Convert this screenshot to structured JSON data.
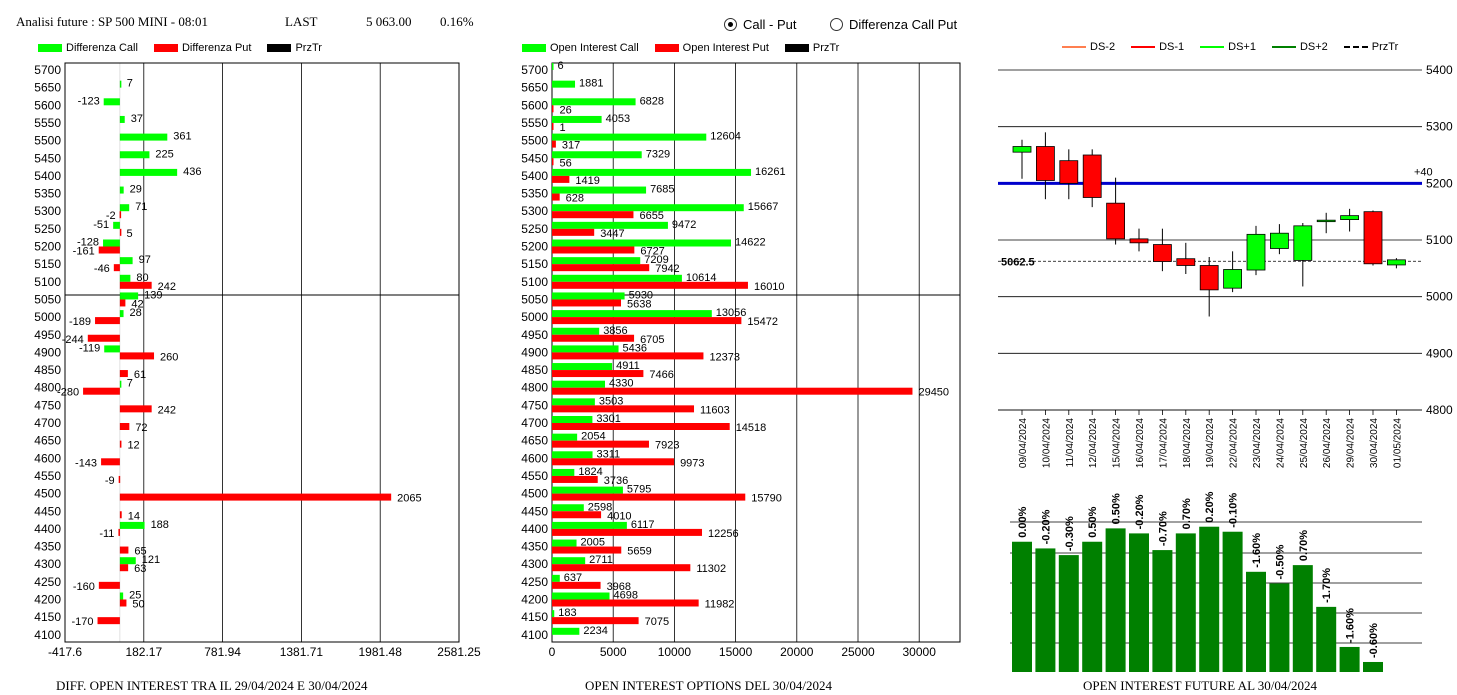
{
  "header": {
    "title": "Analisi future : SP 500 MINI - 08:01",
    "last_label": "LAST",
    "last_value": "5 063.00",
    "last_change": "0.16%"
  },
  "mode": {
    "options": [
      {
        "label": "Call - Put",
        "selected": true
      },
      {
        "label": "Differenza Call Put",
        "selected": false
      }
    ]
  },
  "colors": {
    "call": "#00ff00",
    "put": "#ff0000",
    "przTr": "#000000",
    "ds_minus2": "#ff7f50",
    "ds_minus1": "#ff0000",
    "ds_plus1": "#00ff00",
    "ds_plus2": "#008000",
    "candle_up": "#00ff00",
    "candle_down": "#ff0000",
    "level_line": "#0000cc",
    "oi_bar": "#008000"
  },
  "legends": {
    "diff": [
      {
        "label": "Differenza Call",
        "color": "#00ff00"
      },
      {
        "label": "Differenza Put",
        "color": "#ff0000"
      },
      {
        "label": "PrzTr",
        "color": "#000000"
      }
    ],
    "oi": [
      {
        "label": "Open Interest Call",
        "color": "#00ff00"
      },
      {
        "label": "Open Interest Put",
        "color": "#ff0000"
      },
      {
        "label": "PrzTr",
        "color": "#000000"
      }
    ],
    "future": [
      {
        "label": "DS-2",
        "color": "#ff7f50",
        "style": "solid"
      },
      {
        "label": "DS-1",
        "color": "#ff0000",
        "style": "solid"
      },
      {
        "label": "DS+1",
        "color": "#00ff00",
        "style": "solid"
      },
      {
        "label": "DS+2",
        "color": "#008000",
        "style": "solid"
      },
      {
        "label": "PrzTr",
        "color": "#000000",
        "style": "dashed"
      }
    ]
  },
  "footers": {
    "diff": "DIFF. OPEN INTEREST TRA IL 29/04/2024 E 30/04/2024",
    "oi": "OPEN INTEREST OPTIONS DEL 30/04/2024",
    "future": "OPEN INTEREST FUTURE AL 30/04/2024"
  },
  "chart_data": [
    {
      "type": "bar",
      "orientation": "horizontal",
      "categories": [
        "5700",
        "5650",
        "5600",
        "5550",
        "5500",
        "5450",
        "5400",
        "5350",
        "5300",
        "5250",
        "5200",
        "5150",
        "5100",
        "5050",
        "5000",
        "4950",
        "4900",
        "4850",
        "4800",
        "4750",
        "4700",
        "4650",
        "4600",
        "4550",
        "4500",
        "4450",
        "4400",
        "4350",
        "4300",
        "4250",
        "4200",
        "4150",
        "4100"
      ],
      "series": [
        {
          "name": "Differenza Call",
          "values": [
            null,
            7,
            -123,
            37,
            361,
            225,
            436,
            29,
            71,
            -51,
            -128,
            97,
            80,
            139,
            28,
            null,
            -119,
            null,
            7,
            null,
            null,
            null,
            null,
            null,
            null,
            null,
            188,
            null,
            121,
            null,
            25,
            null,
            null
          ]
        },
        {
          "name": "Differenza Put",
          "values": [
            null,
            null,
            null,
            null,
            null,
            null,
            null,
            null,
            -2,
            5,
            -161,
            -46,
            242,
            42,
            -189,
            -244,
            260,
            61,
            -280,
            242,
            72,
            12,
            -143,
            -9,
            2065,
            14,
            -11,
            65,
            63,
            -160,
            50,
            -170,
            null
          ]
        }
      ],
      "xticks": [
        "-417.6",
        "182.17",
        "781.94",
        "1381.71",
        "1981.48",
        "2581.25"
      ],
      "xlim": [
        -417.6,
        2581.25
      ],
      "przTr": 5062.5,
      "grid": true
    },
    {
      "type": "bar",
      "orientation": "horizontal",
      "categories": [
        "5700",
        "5650",
        "5600",
        "5550",
        "5500",
        "5450",
        "5400",
        "5350",
        "5300",
        "5250",
        "5200",
        "5150",
        "5100",
        "5050",
        "5000",
        "4950",
        "4900",
        "4850",
        "4800",
        "4750",
        "4700",
        "4650",
        "4600",
        "4550",
        "4500",
        "4450",
        "4400",
        "4350",
        "4300",
        "4250",
        "4200",
        "4150",
        "4100"
      ],
      "series": [
        {
          "name": "Open Interest Call",
          "values": [
            6,
            1881,
            6828,
            4053,
            12604,
            7329,
            16261,
            7685,
            15667,
            9472,
            14622,
            7209,
            10614,
            5930,
            13056,
            3856,
            5436,
            4911,
            4330,
            3503,
            3301,
            2054,
            3311,
            1824,
            5795,
            2598,
            6117,
            2005,
            2711,
            637,
            4698,
            183,
            2234
          ]
        },
        {
          "name": "Open Interest Put",
          "values": [
            null,
            null,
            26,
            1,
            317,
            56,
            1419,
            628,
            6655,
            3447,
            6727,
            7942,
            16010,
            5638,
            15472,
            6705,
            12373,
            7466,
            29450,
            11603,
            14518,
            7923,
            9973,
            3736,
            15790,
            4010,
            12256,
            5659,
            11302,
            3968,
            11982,
            7075,
            null
          ]
        }
      ],
      "xticks": [
        "0",
        "5000",
        "10000",
        "15000",
        "20000",
        "25000",
        "30000"
      ],
      "xlim": [
        0,
        30000
      ],
      "przTr": 5062.5,
      "grid": true
    },
    {
      "type": "candlestick",
      "dates": [
        "09/04/2024",
        "10/04/2024",
        "11/04/2024",
        "12/04/2024",
        "15/04/2024",
        "16/04/2024",
        "17/04/2024",
        "18/04/2024",
        "19/04/2024",
        "22/04/2024",
        "23/04/2024",
        "24/04/2024",
        "25/04/2024",
        "26/04/2024",
        "29/04/2024",
        "30/04/2024",
        "01/05/2024"
      ],
      "open": [
        5255,
        5265,
        5240,
        5250,
        5165,
        5102,
        5092,
        5067,
        5055,
        5015,
        5047,
        5085,
        5064,
        5135,
        5136,
        5150,
        5056
      ],
      "close": [
        5265,
        5205,
        5200,
        5175,
        5102,
        5095,
        5062,
        5055,
        5012,
        5048,
        5110,
        5112,
        5125,
        5135,
        5143,
        5058,
        5065
      ],
      "high": [
        5277,
        5290,
        5260,
        5260,
        5210,
        5120,
        5120,
        5095,
        5070,
        5080,
        5125,
        5128,
        5130,
        5148,
        5155,
        5152,
        5068
      ],
      "low": [
        5208,
        5172,
        5172,
        5158,
        5092,
        5080,
        5045,
        5040,
        4965,
        5008,
        5038,
        5075,
        5018,
        5112,
        5115,
        5055,
        5050
      ],
      "yticks": [
        "5400",
        "5300",
        "5200",
        "5100",
        "5000",
        "4900",
        "4800"
      ],
      "ylim": [
        4800,
        5400
      ],
      "level_value": 5200,
      "level_label": "+40",
      "przTr": 5062.5,
      "przTr_label": "5062.5"
    },
    {
      "type": "bar",
      "categories": [
        "09/04/2024",
        "10/04/2024",
        "11/04/2024",
        "12/04/2024",
        "15/04/2024",
        "16/04/2024",
        "17/04/2024",
        "18/04/2024",
        "19/04/2024",
        "22/04/2024",
        "23/04/2024",
        "24/04/2024",
        "25/04/2024",
        "26/04/2024",
        "29/04/2024",
        "30/04/2024"
      ],
      "values": [
        0.78,
        0.74,
        0.7,
        0.78,
        0.86,
        0.83,
        0.73,
        0.83,
        0.87,
        0.84,
        0.6,
        0.53,
        0.64,
        0.39,
        0.15,
        0.06
      ],
      "labels": [
        "0.00%",
        "-0.20%",
        "-0.30%",
        "0.50%",
        "0.50%",
        "-0.20%",
        "-0.70%",
        "0.70%",
        "0.20%",
        "-0.10%",
        "-1.60%",
        "-0.50%",
        "0.70%",
        "-1.70%",
        "-1.60%",
        "-0.60%"
      ],
      "ylim": [
        0,
        1
      ]
    }
  ]
}
